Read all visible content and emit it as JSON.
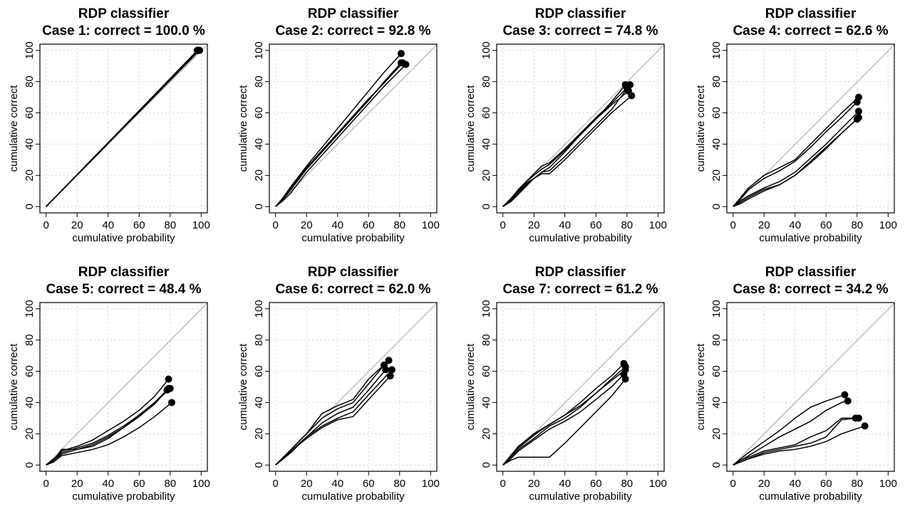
{
  "chart_data": [
    {
      "type": "line",
      "title": "RDP classifier",
      "subtitle": "Case 1: correct = 100.0 %",
      "xlabel": "cumulative probability",
      "ylabel": "cumulative correct",
      "xlim": [
        0,
        100
      ],
      "ylim": [
        0,
        100
      ],
      "xticks": [
        "0",
        "20",
        "40",
        "60",
        "80",
        "100"
      ],
      "yticks": [
        "0",
        "20",
        "40",
        "60",
        "80",
        "100"
      ],
      "grid": true,
      "reference_line": "y = x",
      "series": [
        {
          "x": [
            0,
            20,
            40,
            60,
            80,
            98
          ],
          "y": [
            0,
            20.4,
            40.8,
            61.2,
            81.6,
            100
          ]
        },
        {
          "x": [
            0,
            20,
            40,
            60,
            80,
            98.5
          ],
          "y": [
            0,
            20.3,
            40.6,
            60.9,
            81.2,
            100
          ]
        },
        {
          "x": [
            0,
            20,
            40,
            60,
            80,
            99
          ],
          "y": [
            0,
            20.2,
            40.4,
            60.6,
            80.8,
            100
          ]
        },
        {
          "x": [
            0,
            20,
            40,
            60,
            80,
            97.5
          ],
          "y": [
            0,
            20.5,
            41,
            61.5,
            82,
            100
          ]
        }
      ]
    },
    {
      "type": "line",
      "title": "RDP classifier",
      "subtitle": "Case 2: correct = 92.8 %",
      "xlabel": "cumulative probability",
      "ylabel": "cumulative correct",
      "xlim": [
        0,
        100
      ],
      "ylim": [
        0,
        100
      ],
      "xticks": [
        "0",
        "20",
        "40",
        "60",
        "80",
        "100"
      ],
      "yticks": [
        "0",
        "20",
        "40",
        "60",
        "80",
        "100"
      ],
      "grid": true,
      "reference_line": "y = x",
      "series": [
        {
          "x": [
            0,
            5,
            10,
            20,
            30,
            40,
            50,
            60,
            70,
            81
          ],
          "y": [
            0,
            6,
            13,
            26,
            38,
            50,
            62,
            74,
            86,
            98
          ]
        },
        {
          "x": [
            0,
            5,
            10,
            20,
            30,
            40,
            50,
            60,
            70,
            81
          ],
          "y": [
            0,
            5,
            11,
            24,
            35,
            46,
            57,
            68,
            80,
            92
          ]
        },
        {
          "x": [
            0,
            5,
            10,
            20,
            30,
            40,
            50,
            60,
            70,
            84
          ],
          "y": [
            0,
            4,
            9,
            22,
            33,
            44,
            55,
            66,
            77,
            91
          ]
        },
        {
          "x": [
            0,
            5,
            10,
            20,
            30,
            40,
            50,
            60,
            70,
            82
          ],
          "y": [
            0,
            5,
            12,
            25,
            36,
            47,
            58,
            69,
            79,
            92
          ]
        }
      ]
    },
    {
      "type": "line",
      "title": "RDP classifier",
      "subtitle": "Case 3: correct = 74.8 %",
      "xlabel": "cumulative probability",
      "ylabel": "cumulative correct",
      "xlim": [
        0,
        100
      ],
      "ylim": [
        0,
        100
      ],
      "xticks": [
        "0",
        "20",
        "40",
        "60",
        "80",
        "100"
      ],
      "yticks": [
        "0",
        "20",
        "40",
        "60",
        "80",
        "100"
      ],
      "grid": true,
      "reference_line": "y = x",
      "series": [
        {
          "x": [
            0,
            5,
            10,
            15,
            20,
            25,
            30,
            40,
            50,
            60,
            70,
            79
          ],
          "y": [
            0,
            5,
            10,
            15,
            18,
            22,
            25,
            35,
            46,
            56,
            67,
            78
          ]
        },
        {
          "x": [
            0,
            5,
            10,
            15,
            20,
            25,
            30,
            40,
            50,
            60,
            70,
            82
          ],
          "y": [
            0,
            4,
            9,
            14,
            18,
            22,
            23,
            32,
            42,
            52,
            62,
            78
          ]
        },
        {
          "x": [
            0,
            5,
            10,
            15,
            20,
            25,
            30,
            40,
            50,
            60,
            70,
            81
          ],
          "y": [
            0,
            5,
            10,
            16,
            20,
            24,
            27,
            36,
            46,
            56,
            65,
            74
          ]
        },
        {
          "x": [
            0,
            5,
            10,
            15,
            20,
            25,
            30,
            40,
            50,
            60,
            70,
            83
          ],
          "y": [
            0,
            3,
            8,
            13,
            18,
            21,
            21,
            30,
            40,
            50,
            60,
            71
          ]
        },
        {
          "x": [
            0,
            5,
            10,
            15,
            20,
            25,
            30,
            40,
            50,
            60,
            70,
            80
          ],
          "y": [
            0,
            5,
            11,
            16,
            21,
            26,
            28,
            37,
            47,
            57,
            66,
            76
          ]
        }
      ]
    },
    {
      "type": "line",
      "title": "RDP classifier",
      "subtitle": "Case 4: correct = 62.6 %",
      "xlabel": "cumulative probability",
      "ylabel": "cumulative correct",
      "xlim": [
        0,
        100
      ],
      "ylim": [
        0,
        100
      ],
      "xticks": [
        "0",
        "20",
        "40",
        "60",
        "80",
        "100"
      ],
      "yticks": [
        "0",
        "20",
        "40",
        "60",
        "80",
        "100"
      ],
      "grid": true,
      "reference_line": "y = x",
      "series": [
        {
          "x": [
            0,
            5,
            10,
            20,
            30,
            40,
            50,
            60,
            70,
            81
          ],
          "y": [
            0,
            6,
            12,
            20,
            25,
            30,
            40,
            50,
            60,
            70
          ]
        },
        {
          "x": [
            0,
            5,
            10,
            20,
            30,
            40,
            50,
            60,
            70,
            80
          ],
          "y": [
            0,
            5,
            11,
            18,
            23,
            29,
            38,
            48,
            57,
            67
          ]
        },
        {
          "x": [
            0,
            5,
            10,
            20,
            30,
            40,
            50,
            60,
            70,
            81
          ],
          "y": [
            0,
            3,
            6,
            11,
            14,
            20,
            29,
            38,
            47,
            57
          ]
        },
        {
          "x": [
            0,
            5,
            10,
            20,
            30,
            40,
            50,
            60,
            70,
            81
          ],
          "y": [
            0,
            4,
            7,
            12,
            16,
            22,
            31,
            40,
            50,
            61
          ]
        },
        {
          "x": [
            0,
            5,
            10,
            20,
            30,
            40,
            50,
            60,
            70,
            80
          ],
          "y": [
            0,
            2,
            5,
            10,
            14,
            20,
            28,
            37,
            47,
            56
          ]
        }
      ]
    },
    {
      "type": "line",
      "title": "RDP classifier",
      "subtitle": "Case 5: correct = 48.4 %",
      "xlabel": "cumulative probability",
      "ylabel": "cumulative correct",
      "xlim": [
        0,
        100
      ],
      "ylim": [
        0,
        100
      ],
      "xticks": [
        "0",
        "20",
        "40",
        "60",
        "80",
        "100"
      ],
      "yticks": [
        "0",
        "20",
        "40",
        "60",
        "80",
        "100"
      ],
      "grid": true,
      "reference_line": "y = x",
      "series": [
        {
          "x": [
            0,
            5,
            10,
            20,
            30,
            40,
            50,
            60,
            70,
            79
          ],
          "y": [
            0,
            4,
            9,
            12,
            16,
            22,
            28,
            35,
            44,
            55
          ]
        },
        {
          "x": [
            0,
            5,
            10,
            20,
            30,
            40,
            50,
            60,
            70,
            79
          ],
          "y": [
            0,
            3,
            8,
            11,
            14,
            19,
            25,
            32,
            40,
            49
          ]
        },
        {
          "x": [
            0,
            5,
            10,
            20,
            30,
            40,
            50,
            60,
            70,
            80
          ],
          "y": [
            0,
            3,
            10,
            10,
            12,
            17,
            24,
            32,
            40,
            49
          ]
        },
        {
          "x": [
            0,
            5,
            10,
            20,
            30,
            40,
            50,
            60,
            70,
            81
          ],
          "y": [
            0,
            2,
            6,
            8,
            10,
            13,
            18,
            24,
            31,
            40
          ]
        },
        {
          "x": [
            0,
            5,
            10,
            20,
            30,
            40,
            50,
            60,
            70,
            78
          ],
          "y": [
            0,
            3,
            7,
            10,
            13,
            18,
            24,
            31,
            39,
            48
          ]
        }
      ]
    },
    {
      "type": "line",
      "title": "RDP classifier",
      "subtitle": "Case 6: correct = 62.0 %",
      "xlabel": "cumulative probability",
      "ylabel": "cumulative correct",
      "xlim": [
        0,
        100
      ],
      "ylim": [
        0,
        100
      ],
      "xticks": [
        "0",
        "20",
        "40",
        "60",
        "80",
        "100"
      ],
      "yticks": [
        "0",
        "20",
        "40",
        "60",
        "80",
        "100"
      ],
      "grid": true,
      "reference_line": "y = x",
      "series": [
        {
          "x": [
            0,
            5,
            10,
            20,
            30,
            40,
            50,
            60,
            73
          ],
          "y": [
            0,
            5,
            10,
            20,
            33,
            38,
            42,
            55,
            67
          ]
        },
        {
          "x": [
            0,
            5,
            10,
            20,
            30,
            40,
            50,
            60,
            70
          ],
          "y": [
            0,
            5,
            10,
            20,
            30,
            36,
            40,
            52,
            64
          ]
        },
        {
          "x": [
            0,
            5,
            10,
            20,
            30,
            40,
            50,
            60,
            71
          ],
          "y": [
            0,
            5,
            9,
            18,
            27,
            33,
            37,
            48,
            61
          ]
        },
        {
          "x": [
            0,
            5,
            10,
            20,
            30,
            40,
            50,
            60,
            75
          ],
          "y": [
            0,
            4,
            8,
            18,
            25,
            30,
            34,
            45,
            61
          ]
        },
        {
          "x": [
            0,
            5,
            10,
            20,
            30,
            40,
            50,
            60,
            74
          ],
          "y": [
            0,
            4,
            9,
            17,
            24,
            29,
            31,
            42,
            57
          ]
        }
      ]
    },
    {
      "type": "line",
      "title": "RDP classifier",
      "subtitle": "Case 7: correct = 61.2 %",
      "xlabel": "cumulative probability",
      "ylabel": "cumulative correct",
      "xlim": [
        0,
        100
      ],
      "ylim": [
        0,
        100
      ],
      "xticks": [
        "0",
        "20",
        "40",
        "60",
        "80",
        "100"
      ],
      "yticks": [
        "0",
        "20",
        "40",
        "60",
        "80",
        "100"
      ],
      "grid": true,
      "reference_line": "y = x",
      "series": [
        {
          "x": [
            0,
            5,
            10,
            20,
            30,
            40,
            50,
            60,
            70,
            78
          ],
          "y": [
            0,
            6,
            12,
            20,
            26,
            32,
            40,
            49,
            57,
            65
          ]
        },
        {
          "x": [
            0,
            5,
            10,
            20,
            30,
            40,
            50,
            60,
            70,
            79
          ],
          "y": [
            0,
            5,
            10,
            17,
            25,
            30,
            37,
            46,
            55,
            63
          ]
        },
        {
          "x": [
            0,
            5,
            10,
            20,
            30,
            40,
            50,
            60,
            70,
            79
          ],
          "y": [
            0,
            6,
            11,
            19,
            26,
            32,
            38,
            46,
            54,
            61
          ]
        },
        {
          "x": [
            0,
            5,
            10,
            20,
            30,
            40,
            50,
            60,
            70,
            78
          ],
          "y": [
            0,
            4,
            9,
            16,
            23,
            28,
            34,
            42,
            50,
            58
          ]
        },
        {
          "x": [
            0,
            5,
            10,
            20,
            30,
            40,
            50,
            60,
            70,
            79
          ],
          "y": [
            0,
            3,
            5,
            5,
            5,
            14,
            24,
            34,
            44,
            55
          ]
        }
      ]
    },
    {
      "type": "line",
      "title": "RDP classifier",
      "subtitle": "Case 8: correct = 34.2 %",
      "xlabel": "cumulative probability",
      "ylabel": "cumulative correct",
      "xlim": [
        0,
        100
      ],
      "ylim": [
        0,
        100
      ],
      "xticks": [
        "0",
        "20",
        "40",
        "60",
        "80",
        "100"
      ],
      "yticks": [
        "0",
        "20",
        "40",
        "60",
        "80",
        "100"
      ],
      "grid": true,
      "reference_line": "y = x",
      "series": [
        {
          "x": [
            0,
            5,
            10,
            20,
            30,
            40,
            50,
            60,
            72
          ],
          "y": [
            0,
            4,
            8,
            15,
            22,
            30,
            37,
            41,
            45
          ]
        },
        {
          "x": [
            0,
            5,
            10,
            20,
            30,
            40,
            50,
            60,
            70,
            74
          ],
          "y": [
            0,
            3,
            6,
            12,
            18,
            23,
            28,
            35,
            40,
            41
          ]
        },
        {
          "x": [
            0,
            5,
            10,
            20,
            30,
            40,
            50,
            60,
            70,
            81
          ],
          "y": [
            0,
            3,
            5,
            9,
            11,
            13,
            18,
            22,
            30,
            30
          ]
        },
        {
          "x": [
            0,
            5,
            10,
            20,
            30,
            40,
            50,
            60,
            70,
            79
          ],
          "y": [
            0,
            2,
            4,
            8,
            10,
            12,
            14,
            18,
            29,
            30
          ]
        },
        {
          "x": [
            0,
            5,
            10,
            20,
            30,
            40,
            50,
            60,
            70,
            85
          ],
          "y": [
            0,
            2,
            4,
            7,
            9,
            10,
            12,
            15,
            20,
            25
          ]
        }
      ]
    }
  ]
}
